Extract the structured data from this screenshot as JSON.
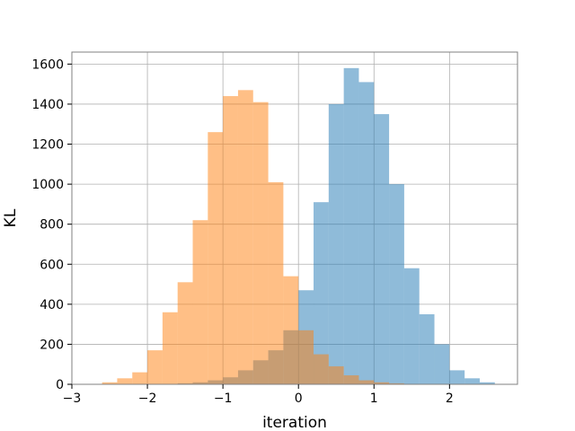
{
  "chart_data": {
    "type": "bar",
    "title": "",
    "xlabel": "iteration",
    "ylabel": "KL",
    "xlim": [
      -3.0,
      2.9
    ],
    "ylim": [
      0,
      1660
    ],
    "xticks": [
      -3,
      -2,
      -1,
      0,
      1,
      2
    ],
    "yticks": [
      0,
      200,
      400,
      600,
      800,
      1000,
      1200,
      1400,
      1600
    ],
    "grid": true,
    "legend": "none",
    "series": [
      {
        "color": "#1f77b4",
        "opacity": 0.5,
        "bin_edges": [
          -1.8,
          -1.6,
          -1.4,
          -1.2,
          -1.0,
          -0.8,
          -0.6,
          -0.4,
          -0.2,
          0.0,
          0.2,
          0.4,
          0.6,
          0.8,
          1.0,
          1.2,
          1.4,
          1.6,
          1.8,
          2.0,
          2.2,
          2.4,
          2.6
        ],
        "counts": [
          2,
          5,
          10,
          20,
          35,
          70,
          120,
          170,
          270,
          470,
          910,
          1400,
          1580,
          1510,
          1350,
          1000,
          580,
          350,
          200,
          70,
          30,
          10
        ]
      },
      {
        "color": "#ff7f0e",
        "opacity": 0.5,
        "bin_edges": [
          -2.6,
          -2.4,
          -2.2,
          -2.0,
          -1.8,
          -1.6,
          -1.4,
          -1.2,
          -1.0,
          -0.8,
          -0.6,
          -0.4,
          -0.2,
          0.0,
          0.2,
          0.4,
          0.6,
          0.8,
          1.0,
          1.2,
          1.4,
          1.6
        ],
        "counts": [
          10,
          30,
          60,
          170,
          360,
          510,
          820,
          1260,
          1440,
          1470,
          1410,
          1010,
          540,
          270,
          150,
          90,
          45,
          20,
          10,
          5,
          2
        ]
      }
    ]
  }
}
